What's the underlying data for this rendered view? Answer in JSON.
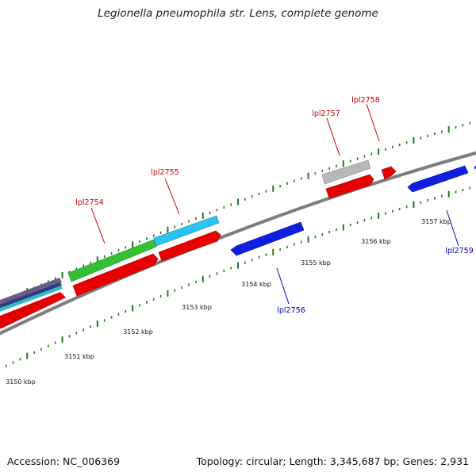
{
  "title": "Legionella pneumophila str. Lens, complete genome",
  "footer": {
    "accession": "Accession: NC_006369",
    "summary": "Topology: circular; Length: 3,345,687 bp; Genes: 2,931"
  },
  "colors": {
    "backbone": "#8a8a8a",
    "ticks": "#1f7a1f",
    "forward_label": "#cc0000",
    "reverse_label": "#0000cc"
  },
  "tick_labels": [
    "3150 kbp",
    "3151 kbp",
    "3152 kbp",
    "3153 kbp",
    "3154 kbp",
    "3155 kbp",
    "3156 kbp",
    "3157 kbp"
  ],
  "genes": [
    {
      "name": "lpl2754",
      "color": "#cc0000"
    },
    {
      "name": "lpl2755",
      "color": "#cc0000"
    },
    {
      "name": "lpl2756",
      "color": "#0000cc"
    },
    {
      "name": "lpl2757",
      "color": "#cc0000"
    },
    {
      "name": "lpl2758",
      "color": "#cc0000"
    },
    {
      "name": "lpl2759",
      "color": "#0000cc"
    }
  ]
}
